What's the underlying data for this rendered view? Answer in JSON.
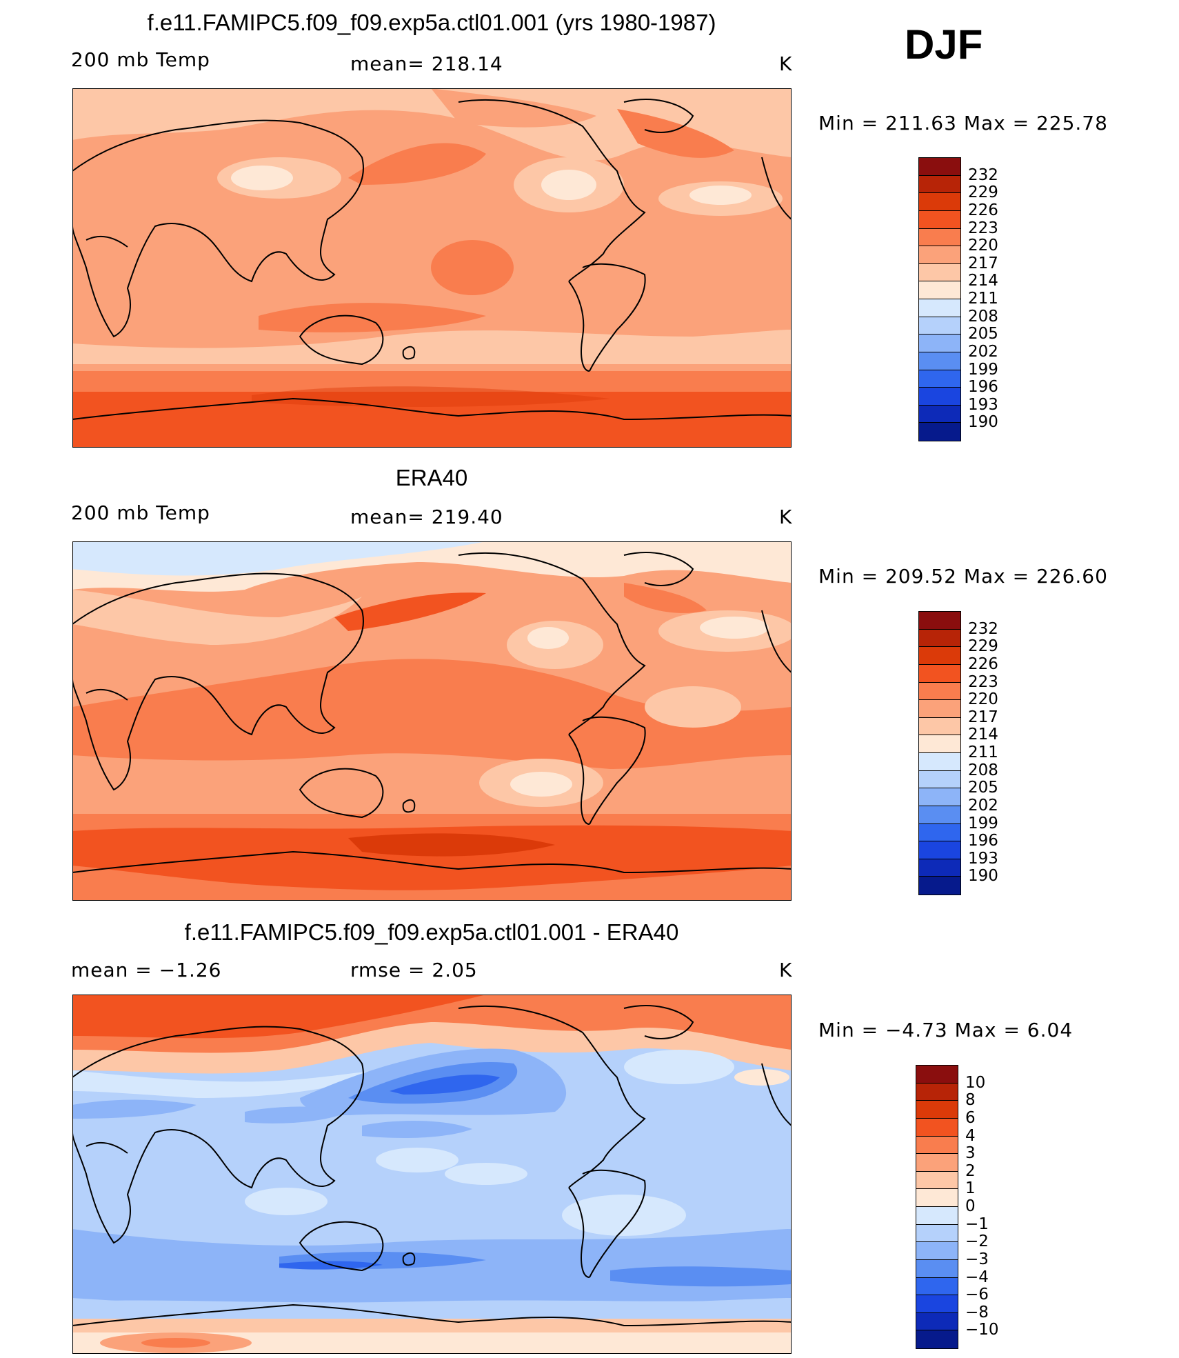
{
  "season": "DJF",
  "panels": [
    {
      "id": "model",
      "title": "f.e11.FAMIPC5.f09_f09.exp5a.ctl01.001 (yrs 1980-1987)",
      "left_label": "200 mb Temp",
      "center_label": "mean= 218.14",
      "units": "K",
      "minmax": "Min  =  211.63  Max  =  225.78",
      "colorbar_labels": [
        "232",
        "229",
        "226",
        "223",
        "220",
        "217",
        "214",
        "211",
        "208",
        "205",
        "202",
        "199",
        "196",
        "193",
        "190"
      ],
      "colorbar_colors": [
        "#8a0e0e",
        "#b72407",
        "#db3a09",
        "#f25320",
        "#f97d4e",
        "#fba27a",
        "#fdc7a7",
        "#fee8d6",
        "#d6e8fd",
        "#b5d1fb",
        "#8db4f8",
        "#5a8ef2",
        "#2f66ee",
        "#1a45e0",
        "#0d2ab8",
        "#061a8c"
      ]
    },
    {
      "id": "obs",
      "title": "ERA40",
      "left_label": "200 mb Temp",
      "center_label": "mean= 219.40",
      "units": "K",
      "minmax": "Min  =  209.52  Max  =  226.60",
      "colorbar_labels": [
        "232",
        "229",
        "226",
        "223",
        "220",
        "217",
        "214",
        "211",
        "208",
        "205",
        "202",
        "199",
        "196",
        "193",
        "190"
      ],
      "colorbar_colors": [
        "#8a0e0e",
        "#b72407",
        "#db3a09",
        "#f25320",
        "#f97d4e",
        "#fba27a",
        "#fdc7a7",
        "#fee8d6",
        "#d6e8fd",
        "#b5d1fb",
        "#8db4f8",
        "#5a8ef2",
        "#2f66ee",
        "#1a45e0",
        "#0d2ab8",
        "#061a8c"
      ]
    },
    {
      "id": "diff",
      "title": "f.e11.FAMIPC5.f09_f09.exp5a.ctl01.001 - ERA40",
      "left_label": "mean =    −1.26",
      "center_label": "rmse =     2.05",
      "units": "K",
      "minmax": "Min  =    −4.73  Max  =      6.04",
      "colorbar_labels": [
        "10",
        "8",
        "6",
        "4",
        "3",
        "2",
        "1",
        "0",
        "−1",
        "−2",
        "−3",
        "−4",
        "−6",
        "−8",
        "−10"
      ],
      "colorbar_colors": [
        "#8a0e0e",
        "#b72407",
        "#db3a09",
        "#f25320",
        "#f97d4e",
        "#fba27a",
        "#fdc7a7",
        "#fee8d6",
        "#d6e8fd",
        "#b5d1fb",
        "#8db4f8",
        "#5a8ef2",
        "#2f66ee",
        "#1a45e0",
        "#0d2ab8",
        "#061a8c"
      ]
    }
  ]
}
